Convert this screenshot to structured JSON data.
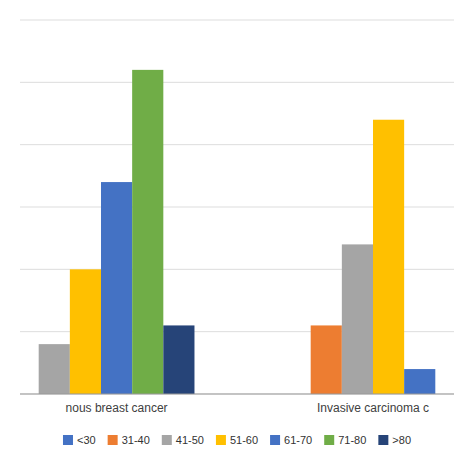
{
  "chart_data": {
    "type": "bar",
    "categories": [
      "nous breast cancer",
      "Invasive carcinoma c"
    ],
    "series": [
      {
        "name": "<30",
        "color": "#4472C4",
        "values": [
          null,
          null
        ]
      },
      {
        "name": "31-40",
        "color": "#ED7D31",
        "values": [
          null,
          11
        ]
      },
      {
        "name": "41-50",
        "color": "#A5A5A5",
        "values": [
          8,
          24
        ]
      },
      {
        "name": "51-60",
        "color": "#FFC000",
        "values": [
          20,
          44
        ]
      },
      {
        "name": "61-70",
        "color": "#4472C4",
        "values": [
          34,
          4
        ]
      },
      {
        "name": "71-80",
        "color": "#70AD47",
        "values": [
          52,
          null
        ]
      },
      {
        "name": ">80",
        "color": "#264478",
        "values": [
          11,
          null
        ]
      }
    ],
    "ylim": [
      0,
      60
    ],
    "yticks": [
      0,
      10,
      20,
      30,
      40,
      50,
      60
    ],
    "grid": true,
    "tick_labels": "x",
    "legend": "bottom"
  }
}
